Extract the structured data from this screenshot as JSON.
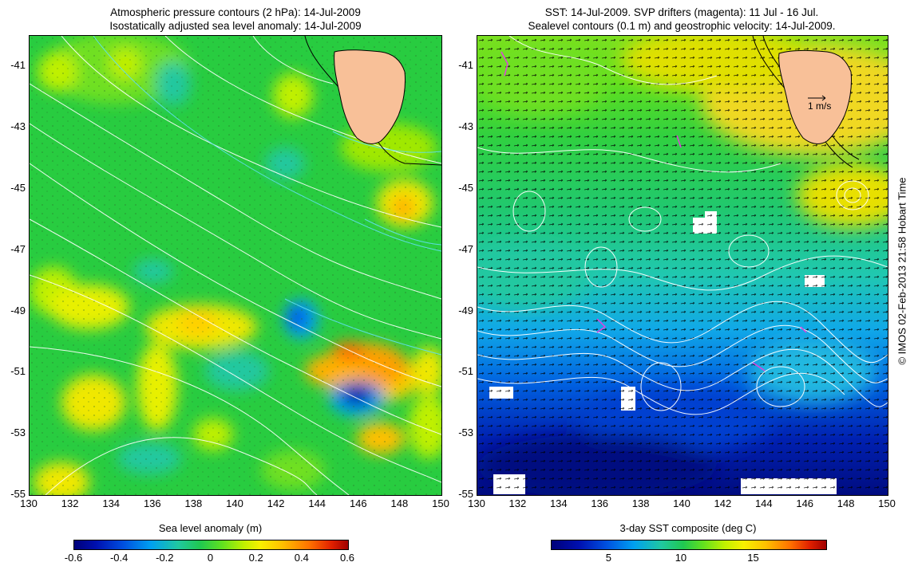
{
  "left_panel": {
    "title_line1": "Atmospheric pressure contours (2 hPa): 14-Jul-2009",
    "title_line2": "Isostatically adjusted sea level anomaly: 14-Jul-2009",
    "colorbar_title": "Sea level anomaly (m)",
    "colorbar_ticks": [
      "-0.6",
      "-0.4",
      "-0.2",
      "0",
      "0.2",
      "0.4",
      "0.6"
    ],
    "colorbar_range": [
      -0.6,
      0.6
    ]
  },
  "right_panel": {
    "title_line1": "SST: 14-Jul-2009. SVP drifters (magenta): 11 Jul - 16 Jul.",
    "title_line2": "Sealevel contours (0.1 m) and geostrophic velocity: 14-Jul-2009.",
    "velocity_scale_label": "1 m/s",
    "colorbar_title": "3-day SST composite (deg C)",
    "colorbar_ticks": [
      "5",
      "10",
      "15"
    ],
    "colorbar_range": [
      1,
      20
    ]
  },
  "map_axes": {
    "lon_ticks": [
      "130",
      "132",
      "134",
      "136",
      "138",
      "140",
      "142",
      "144",
      "146",
      "148",
      "150"
    ],
    "lat_ticks": [
      "-41",
      "-43",
      "-45",
      "-47",
      "-49",
      "-51",
      "-53",
      "-55"
    ],
    "lon_range": [
      130,
      150
    ],
    "lat_range": [
      -55,
      -40
    ]
  },
  "credit": "© IMOS 02-Feb-2013 21:58 Hobart Time",
  "colors": {
    "land": "#f8c098",
    "drifters": "#e040e0",
    "sst_warm": "#f0d020",
    "sst_cold": "#001080",
    "sla_background": "#28cc40"
  }
}
